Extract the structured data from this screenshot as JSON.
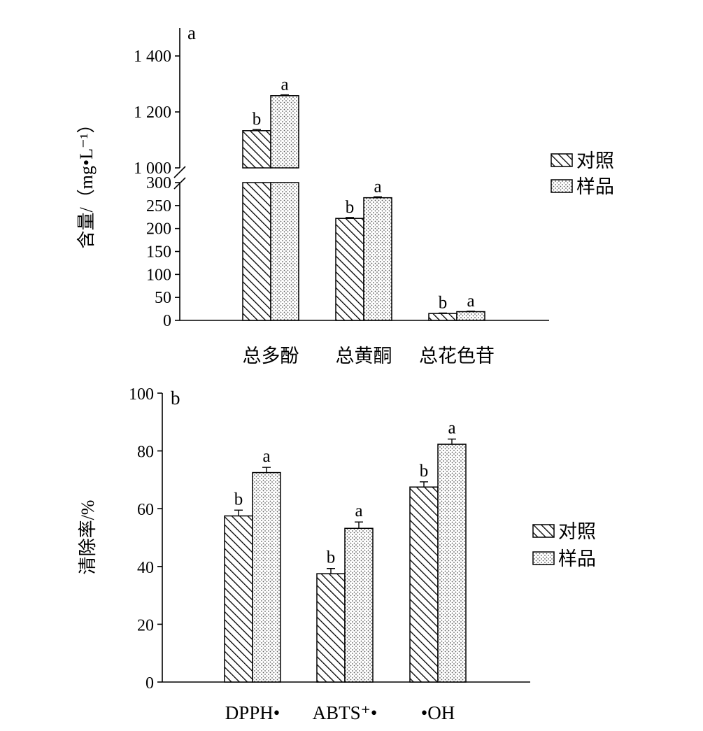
{
  "legend": [
    "对照",
    "样品"
  ],
  "chart_data": [
    {
      "panel": "a",
      "type": "bar",
      "ylabel": "含量/（mg•L⁻¹）",
      "categories": [
        "总多酚",
        "总黄酮",
        "总花色苷"
      ],
      "series": [
        {
          "name": "对照",
          "pattern": "hatch",
          "values": [
            1133,
            222,
            15
          ],
          "errors": [
            4,
            2,
            1
          ],
          "letters": [
            "b",
            "b",
            "b"
          ]
        },
        {
          "name": "样品",
          "pattern": "dots",
          "values": [
            1258,
            267,
            19
          ],
          "errors": [
            3,
            2,
            1
          ],
          "letters": [
            "a",
            "a",
            "a"
          ]
        }
      ],
      "axis_lower": {
        "ylim": [
          0,
          300
        ],
        "ticks": [
          0,
          50,
          100,
          150,
          200,
          250,
          300
        ],
        "tick_labels": [
          "0",
          "50",
          "100",
          "150",
          "200",
          "250",
          "300"
        ]
      },
      "axis_upper": {
        "ylim": [
          1000,
          1500
        ],
        "ticks": [
          1000,
          1200,
          1400
        ],
        "tick_labels": [
          "1 000",
          "1 200",
          "1 400"
        ]
      },
      "axis_break": true,
      "grid": false,
      "legend_position": "right"
    },
    {
      "panel": "b",
      "type": "bar",
      "ylabel": "清除率/%",
      "categories": [
        "DPPH•",
        "ABTS⁺•",
        "•OH"
      ],
      "series": [
        {
          "name": "对照",
          "pattern": "hatch",
          "values": [
            57.5,
            37.5,
            67.5
          ],
          "errors": [
            2,
            1.8,
            1.8
          ],
          "letters": [
            "b",
            "b",
            "b"
          ]
        },
        {
          "name": "样品",
          "pattern": "dots",
          "values": [
            72.5,
            53.2,
            82.3
          ],
          "errors": [
            1.8,
            2.2,
            1.8
          ],
          "letters": [
            "a",
            "a",
            "a"
          ]
        }
      ],
      "ylim": [
        0,
        100
      ],
      "ticks": [
        0,
        20,
        40,
        60,
        80,
        100
      ],
      "tick_labels": [
        "0",
        "20",
        "40",
        "60",
        "80",
        "100"
      ],
      "grid": false,
      "legend_position": "right"
    }
  ]
}
